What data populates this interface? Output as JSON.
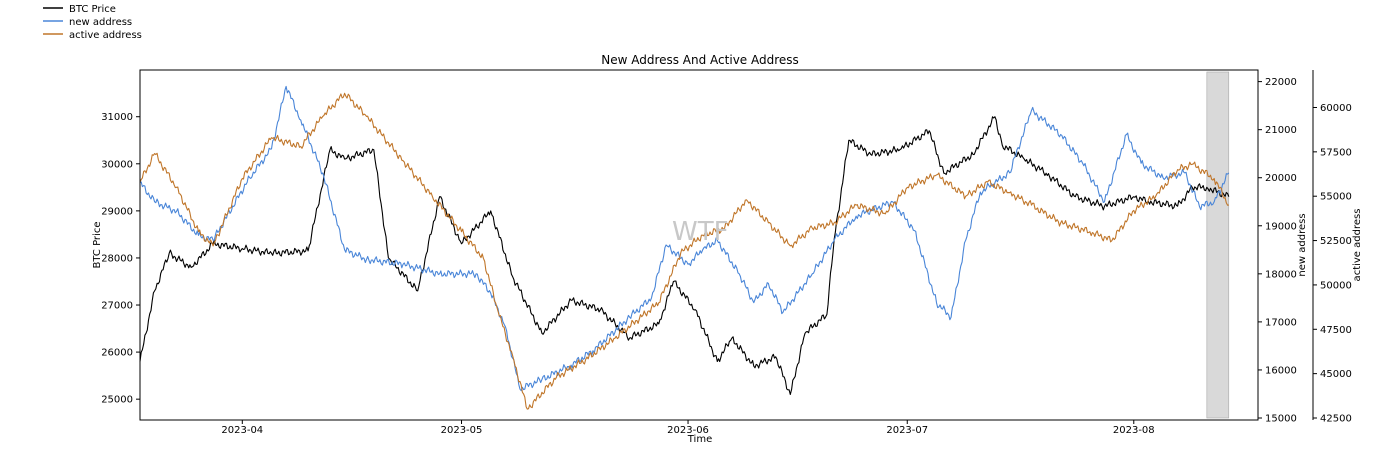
{
  "chart_data": {
    "type": "line",
    "title": "New Address And Active Address",
    "xlabel": "Time",
    "watermark": "WTF",
    "x_ticks": [
      "2023-04",
      "2023-05",
      "2023-06",
      "2023-07",
      "2023-08"
    ],
    "x_domain": [
      "2023-03-18",
      "2023-08-18"
    ],
    "highlight_range": [
      "2023-08-11",
      "2023-08-14"
    ],
    "legend": {
      "placement": "top-left",
      "entries": [
        {
          "label": "BTC Price",
          "color": "#000000"
        },
        {
          "label": "new address",
          "color": "#4a86d8"
        },
        {
          "label": "active address",
          "color": "#c0762a"
        }
      ]
    },
    "axes": {
      "left": {
        "label": "BTC Price",
        "ylim": [
          24600,
          31950
        ],
        "ticks": [
          "25000",
          "26000",
          "27000",
          "28000",
          "29000",
          "30000",
          "31000"
        ]
      },
      "right1": {
        "label": "new address",
        "ylim": [
          15000,
          22200
        ],
        "ticks": [
          "15000",
          "16000",
          "17000",
          "18000",
          "19000",
          "20000",
          "21000",
          "22000"
        ]
      },
      "right2": {
        "label": "active address",
        "ylim": [
          42500,
          62000
        ],
        "ticks": [
          "42500",
          "45000",
          "47500",
          "50000",
          "52500",
          "55000",
          "57500",
          "60000"
        ]
      }
    },
    "series": [
      {
        "name": "BTC Price",
        "axis": "left",
        "color": "#000000",
        "x": [
          "2023-03-18",
          "2023-03-20",
          "2023-03-22",
          "2023-03-25",
          "2023-03-28",
          "2023-04-01",
          "2023-04-05",
          "2023-04-10",
          "2023-04-13",
          "2023-04-15",
          "2023-04-19",
          "2023-04-21",
          "2023-04-25",
          "2023-04-28",
          "2023-05-01",
          "2023-05-05",
          "2023-05-08",
          "2023-05-12",
          "2023-05-16",
          "2023-05-20",
          "2023-05-24",
          "2023-05-28",
          "2023-05-30",
          "2023-06-02",
          "2023-06-05",
          "2023-06-07",
          "2023-06-10",
          "2023-06-13",
          "2023-06-15",
          "2023-06-17",
          "2023-06-20",
          "2023-06-21",
          "2023-06-23",
          "2023-06-26",
          "2023-06-30",
          "2023-07-04",
          "2023-07-06",
          "2023-07-10",
          "2023-07-13",
          "2023-07-14",
          "2023-07-17",
          "2023-07-20",
          "2023-07-24",
          "2023-07-28",
          "2023-08-01",
          "2023-08-03",
          "2023-08-07",
          "2023-08-09",
          "2023-08-11",
          "2023-08-14"
        ],
        "values": [
          25800,
          27300,
          28100,
          27800,
          28300,
          28200,
          28100,
          28150,
          30300,
          30100,
          30300,
          28000,
          27300,
          29300,
          28300,
          29000,
          27600,
          26400,
          27100,
          26900,
          26300,
          26600,
          27500,
          26900,
          25800,
          26300,
          25700,
          25900,
          25100,
          26400,
          26800,
          28400,
          30500,
          30200,
          30300,
          30700,
          29800,
          30200,
          31000,
          30400,
          30100,
          29800,
          29300,
          29100,
          29300,
          29200,
          29100,
          29500,
          29500,
          29300
        ]
      },
      {
        "name": "new address",
        "axis": "right1",
        "color": "#4a86d8",
        "x": [
          "2023-03-18",
          "2023-03-20",
          "2023-03-23",
          "2023-03-26",
          "2023-03-28",
          "2023-04-02",
          "2023-04-05",
          "2023-04-07",
          "2023-04-09",
          "2023-04-12",
          "2023-04-15",
          "2023-04-18",
          "2023-04-23",
          "2023-04-28",
          "2023-05-03",
          "2023-05-05",
          "2023-05-07",
          "2023-05-09",
          "2023-05-12",
          "2023-05-16",
          "2023-05-19",
          "2023-05-24",
          "2023-05-27",
          "2023-05-29",
          "2023-06-01",
          "2023-06-03",
          "2023-06-05",
          "2023-06-08",
          "2023-06-10",
          "2023-06-12",
          "2023-06-14",
          "2023-06-16",
          "2023-06-18",
          "2023-06-21",
          "2023-06-24",
          "2023-06-29",
          "2023-07-02",
          "2023-07-05",
          "2023-07-07",
          "2023-07-09",
          "2023-07-11",
          "2023-07-15",
          "2023-07-18",
          "2023-07-22",
          "2023-07-25",
          "2023-07-28",
          "2023-07-31",
          "2023-08-02",
          "2023-08-05",
          "2023-08-08",
          "2023-08-10",
          "2023-08-12",
          "2023-08-14"
        ],
        "values": [
          19900,
          19500,
          19300,
          18800,
          18700,
          20000,
          20600,
          21900,
          21200,
          20100,
          18500,
          18300,
          18200,
          18000,
          18000,
          17600,
          16900,
          15600,
          15800,
          16100,
          16400,
          17100,
          17500,
          18600,
          18200,
          18500,
          18700,
          18000,
          17400,
          17800,
          17200,
          17600,
          18000,
          18700,
          19200,
          19500,
          18900,
          17400,
          17100,
          18700,
          19700,
          20100,
          21400,
          20900,
          20300,
          19500,
          20900,
          20300,
          20000,
          20100,
          19400,
          19500,
          20100
        ]
      },
      {
        "name": "active address",
        "axis": "right2",
        "color": "#c0762a",
        "x": [
          "2023-03-18",
          "2023-03-20",
          "2023-03-23",
          "2023-03-26",
          "2023-03-28",
          "2023-04-01",
          "2023-04-05",
          "2023-04-09",
          "2023-04-12",
          "2023-04-15",
          "2023-04-18",
          "2023-04-23",
          "2023-04-27",
          "2023-05-01",
          "2023-05-04",
          "2023-05-06",
          "2023-05-08",
          "2023-05-10",
          "2023-05-14",
          "2023-05-18",
          "2023-05-22",
          "2023-05-28",
          "2023-05-31",
          "2023-06-03",
          "2023-06-06",
          "2023-06-09",
          "2023-06-12",
          "2023-06-15",
          "2023-06-18",
          "2023-06-21",
          "2023-06-24",
          "2023-06-28",
          "2023-07-01",
          "2023-07-05",
          "2023-07-09",
          "2023-07-12",
          "2023-07-15",
          "2023-07-18",
          "2023-07-22",
          "2023-07-26",
          "2023-07-29",
          "2023-08-01",
          "2023-08-04",
          "2023-08-07",
          "2023-08-09",
          "2023-08-12",
          "2023-08-14"
        ],
        "values": [
          55800,
          57400,
          55500,
          53000,
          52200,
          56000,
          58300,
          57800,
          59500,
          60800,
          59500,
          57000,
          55000,
          53000,
          51500,
          48500,
          46000,
          43000,
          44800,
          45800,
          47000,
          49000,
          51800,
          52800,
          53200,
          54800,
          53500,
          52200,
          53200,
          53500,
          54500,
          54000,
          55500,
          56200,
          55000,
          55800,
          55200,
          54500,
          53500,
          53000,
          52500,
          54200,
          55000,
          56500,
          56800,
          56000,
          54500
        ]
      }
    ]
  }
}
